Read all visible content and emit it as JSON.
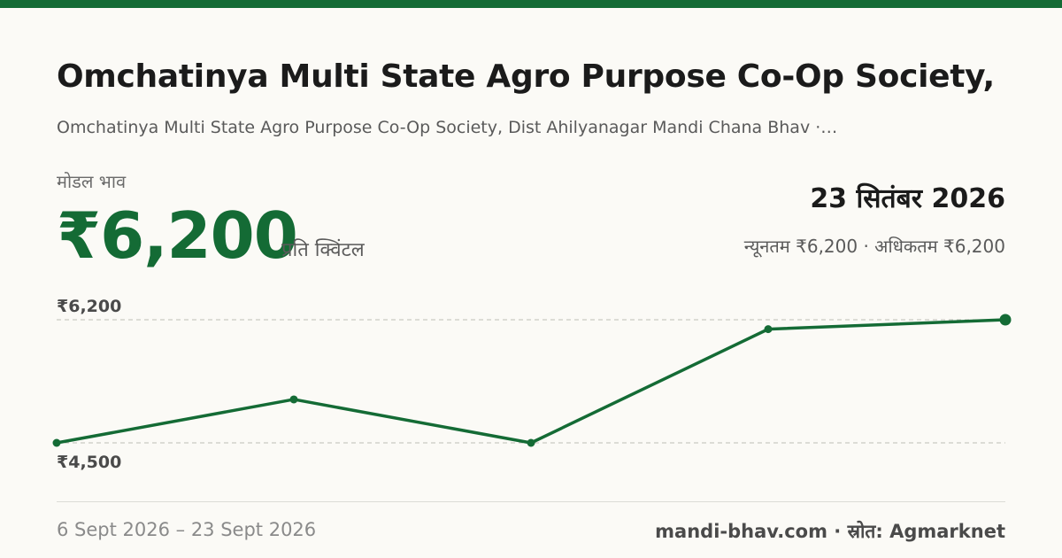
{
  "header": {
    "title": "Omchatinya Multi State Agro Purpose Co-Op Society,…",
    "subtitle": "Omchatinya Multi State Agro Purpose Co-Op Society, Dist Ahilyanagar Mandi Chana Bhav ·…"
  },
  "price": {
    "label": "मोडल भाव",
    "value": "₹6,200",
    "unit": "प्रति क्विंटल"
  },
  "summary": {
    "date": "23 सितंबर 2026",
    "minmax": "न्यूनतम ₹6,200 · अधिकतम ₹6,200"
  },
  "footer": {
    "range": "6 Sept 2026 – 23 Sept 2026",
    "source": "mandi-bhav.com · स्रोत: Agmarknet"
  },
  "colors": {
    "accent": "#146b35",
    "line": "#146b35"
  },
  "chart_data": {
    "type": "line",
    "x": [
      "6 Sept 2026",
      "",
      "",
      "",
      "23 Sept 2026"
    ],
    "series": [
      {
        "values": [
          4500,
          5100,
          4500,
          6070,
          6200
        ]
      }
    ],
    "ylim": [
      4500,
      6200
    ],
    "y_tick_labels": [
      "₹6,200",
      "₹4,500"
    ],
    "grid": true
  }
}
